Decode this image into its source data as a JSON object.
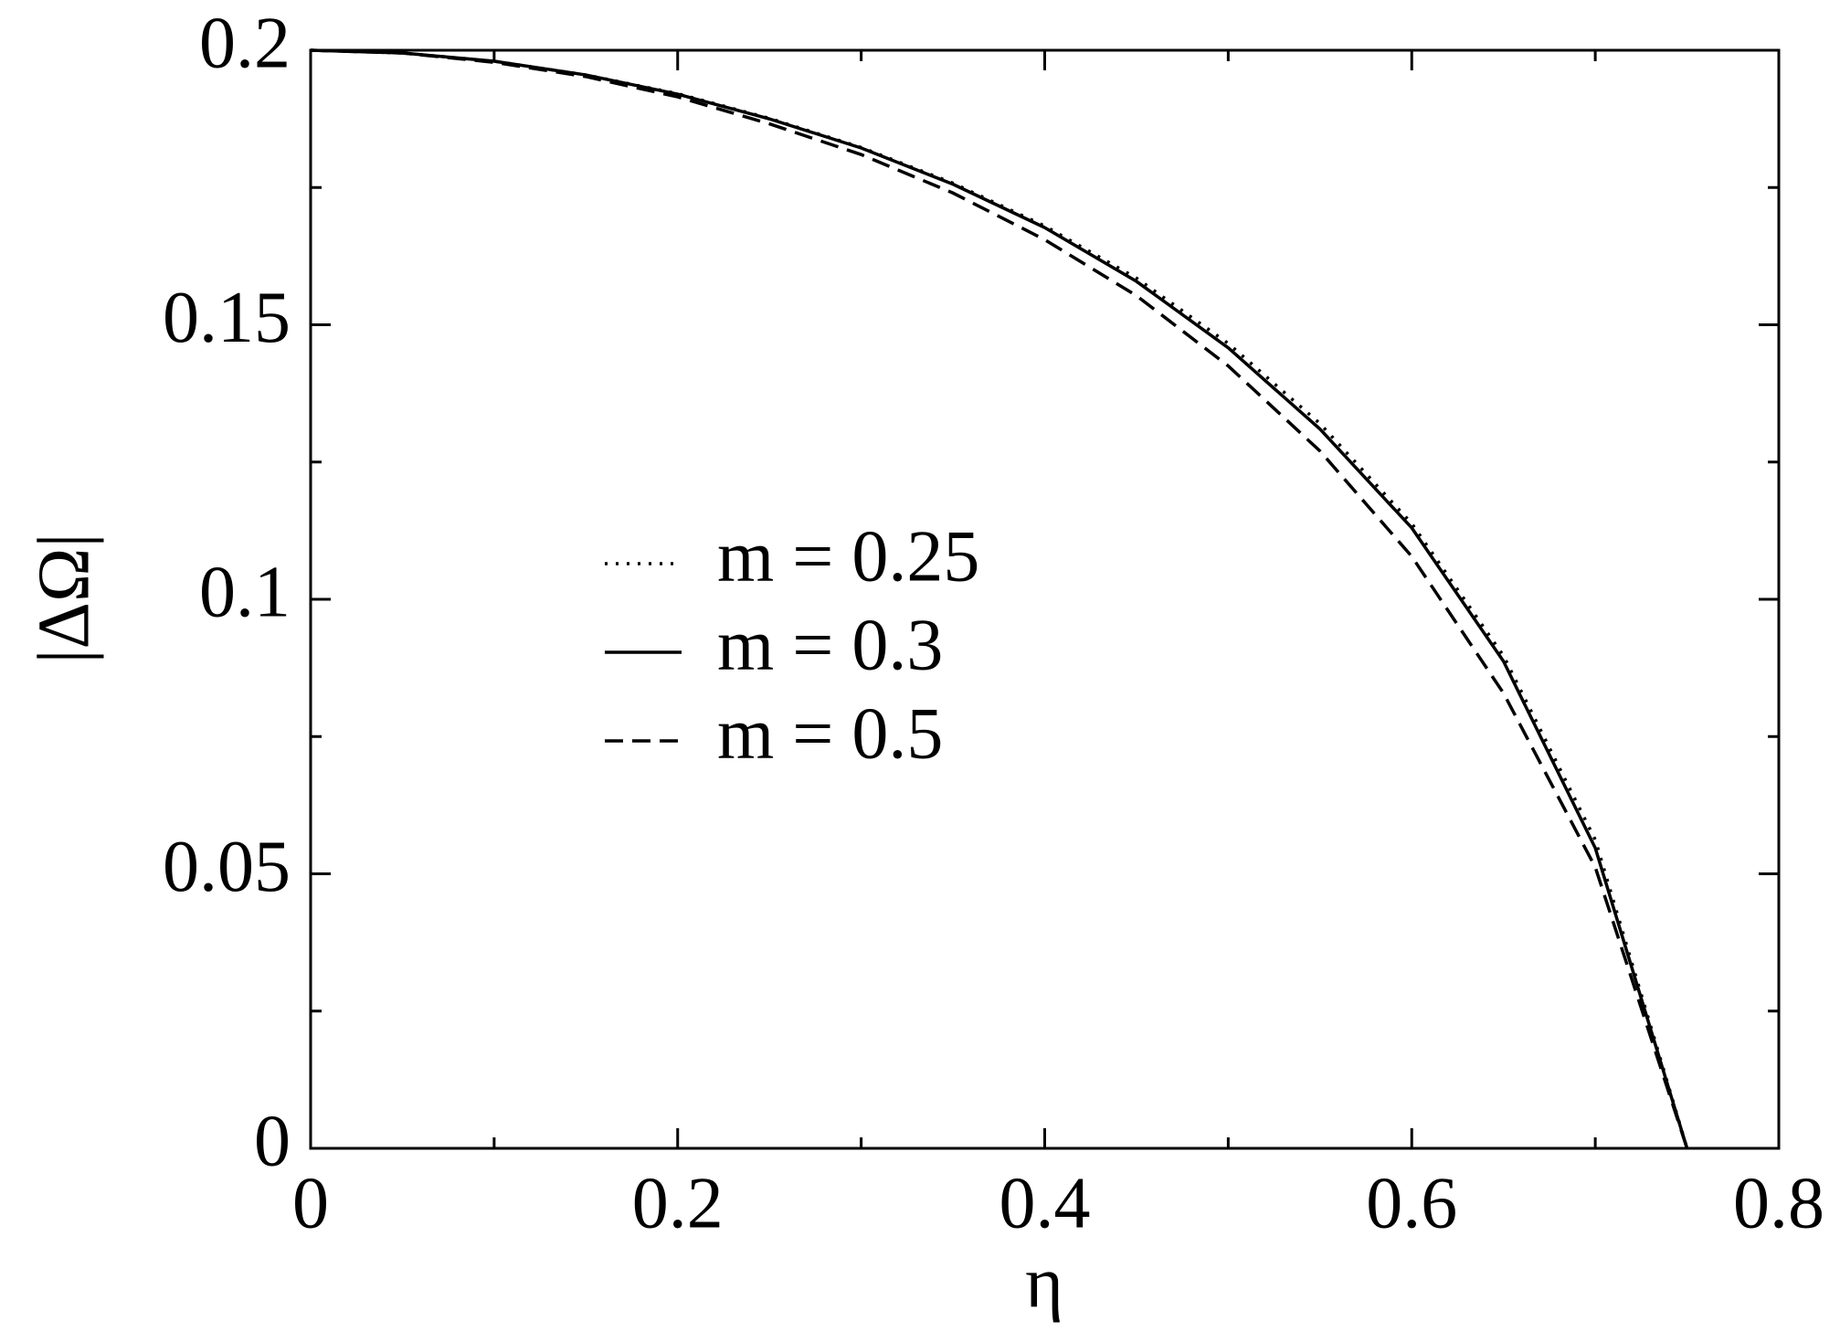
{
  "chart_data": {
    "type": "line",
    "x_label": "η",
    "y_label": "|ΔΩ|",
    "x": [
      0,
      0.05,
      0.1,
      0.15,
      0.2,
      0.25,
      0.3,
      0.35,
      0.4,
      0.45,
      0.5,
      0.55,
      0.6,
      0.65,
      0.7,
      0.75
    ],
    "series": [
      {
        "name": "m = 0.25",
        "color": "#000000",
        "style": "dotted",
        "values": [
          0.2,
          0.1995,
          0.198,
          0.1955,
          0.1921,
          0.1876,
          0.1823,
          0.1758,
          0.168,
          0.1585,
          0.1466,
          0.132,
          0.1138,
          0.0897,
          0.0562,
          0
        ]
      },
      {
        "name": "m = 0.3",
        "color": "#000000",
        "style": "solid",
        "values": [
          0.2,
          0.1995,
          0.198,
          0.1955,
          0.192,
          0.1875,
          0.1822,
          0.1756,
          0.1677,
          0.1579,
          0.1458,
          0.131,
          0.113,
          0.0887,
          0.0547,
          0
        ]
      },
      {
        "name": "m = 0.5",
        "color": "#000000",
        "style": "dashed",
        "values": [
          0.2,
          0.1995,
          0.1978,
          0.1952,
          0.1915,
          0.1866,
          0.181,
          0.174,
          0.1655,
          0.1553,
          0.1425,
          0.127,
          0.1078,
          0.0829,
          0.0512,
          0
        ]
      }
    ],
    "xlim": [
      0,
      0.8
    ],
    "ylim": [
      0,
      0.2
    ],
    "xticks": [
      0,
      0.2,
      0.4,
      0.6,
      0.8
    ],
    "yticks": [
      0,
      0.05,
      0.1,
      0.15,
      0.2
    ],
    "xminorticks": [
      0.1,
      0.3,
      0.5,
      0.7
    ],
    "yminorticks": [
      0.025,
      0.075,
      0.125,
      0.175
    ],
    "legend": "center-left"
  }
}
